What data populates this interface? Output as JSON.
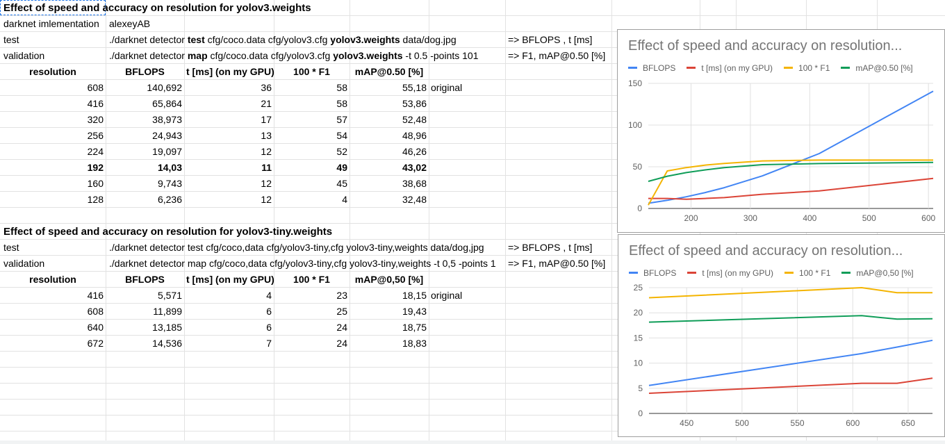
{
  "sheet": {
    "section1": {
      "title": "Effect of speed and accuracy on resolution for yolov3.weights",
      "impl_label": "darknet imlementation",
      "impl_value": "alexeyAB",
      "test_label": "test",
      "test_cmd_1": "./darknet detector ",
      "test_cmd_2": "test",
      "test_cmd_3": " cfg/coco.data cfg/yolov3.cfg ",
      "test_cmd_4": "yolov3.weights",
      "test_cmd_5": " data/dog.jpg",
      "test_result": "=> BFLOPS , t [ms]",
      "val_label": "validation",
      "val_cmd_1": "./darknet detector ",
      "val_cmd_2": "map",
      "val_cmd_3": "  cfg/coco.data cfg/yolov3.cfg ",
      "val_cmd_4": "yolov3.weights",
      "val_cmd_5": " -t 0.5 -points 101",
      "val_result": "=> F1, mAP@0.50 [%]",
      "headers": [
        "resolution",
        "BFLOPS",
        "t [ms] (on my GPU)",
        "100 * F1",
        "mAP@0.50 [%]"
      ],
      "rows": [
        {
          "res": "608",
          "bflops": "140,692",
          "t": "36",
          "f1": "58",
          "map": "55,18",
          "note": "original"
        },
        {
          "res": "416",
          "bflops": "65,864",
          "t": "21",
          "f1": "58",
          "map": "53,86",
          "note": ""
        },
        {
          "res": "320",
          "bflops": "38,973",
          "t": "17",
          "f1": "57",
          "map": "52,48",
          "note": ""
        },
        {
          "res": "256",
          "bflops": "24,943",
          "t": "13",
          "f1": "54",
          "map": "48,96",
          "note": ""
        },
        {
          "res": "224",
          "bflops": "19,097",
          "t": "12",
          "f1": "52",
          "map": "46,26",
          "note": ""
        },
        {
          "res": "192",
          "bflops": "14,03",
          "t": "11",
          "f1": "49",
          "map": "43,02",
          "note": ""
        },
        {
          "res": "160",
          "bflops": "9,743",
          "t": "12",
          "f1": "45",
          "map": "38,68",
          "note": ""
        },
        {
          "res": "128",
          "bflops": "6,236",
          "t": "12",
          "f1": "4",
          "map": "32,48",
          "note": ""
        }
      ]
    },
    "section2": {
      "title": "Effect of speed and accuracy on resolution for yolov3-tiny.weights",
      "test_label": "test",
      "test_cmd": "./darknet detector test  cfg/coco,data cfg/yolov3-tiny,cfg yolov3-tiny,weights data/dog,jpg",
      "test_result": "=> BFLOPS , t [ms]",
      "val_label": "validation",
      "val_cmd": "./darknet detector map  cfg/coco,data cfg/yolov3-tiny,cfg yolov3-tiny,weights -t 0,5 -points 1",
      "val_result": "=> F1, mAP@0.50 [%]",
      "headers": [
        "resolution",
        "BFLOPS",
        "t [ms] (on my GPU)",
        "100 * F1",
        "mAP@0,50 [%]"
      ],
      "rows": [
        {
          "res": "416",
          "bflops": "5,571",
          "t": "4",
          "f1": "23",
          "map": "18,15",
          "note": "original"
        },
        {
          "res": "608",
          "bflops": "11,899",
          "t": "6",
          "f1": "25",
          "map": "19,43",
          "note": ""
        },
        {
          "res": "640",
          "bflops": "13,185",
          "t": "6",
          "f1": "24",
          "map": "18,75",
          "note": ""
        },
        {
          "res": "672",
          "bflops": "14,536",
          "t": "7",
          "f1": "24",
          "map": "18,83",
          "note": ""
        }
      ]
    }
  },
  "chart_data": [
    {
      "type": "line",
      "title": "Effect of speed and accuracy on resolution...",
      "xlabel": "",
      "ylabel": "",
      "xlim": [
        128,
        608
      ],
      "ylim": [
        0,
        150
      ],
      "xticks": [
        200,
        300,
        400,
        500,
        600
      ],
      "yticks": [
        0,
        50,
        100,
        150
      ],
      "grid": true,
      "legend": "top",
      "x": [
        128,
        160,
        192,
        224,
        256,
        320,
        416,
        608
      ],
      "series": [
        {
          "name": "BFLOPS",
          "color": "#4285f4",
          "values": [
            6.236,
            9.743,
            14.03,
            19.097,
            24.943,
            38.973,
            65.864,
            140.692
          ]
        },
        {
          "name": "t [ms] (on my GPU)",
          "color": "#db4437",
          "values": [
            12,
            12,
            11,
            12,
            13,
            17,
            21,
            36
          ]
        },
        {
          "name": "100 * F1",
          "color": "#f4b400",
          "values": [
            4,
            45,
            49,
            52,
            54,
            57,
            58,
            58
          ]
        },
        {
          "name": "mAP@0.50 [%]",
          "color": "#0f9d58",
          "values": [
            32.48,
            38.68,
            43.02,
            46.26,
            48.96,
            52.48,
            53.86,
            55.18
          ]
        }
      ]
    },
    {
      "type": "line",
      "title": "Effect of speed and accuracy on resolution...",
      "xlabel": "",
      "ylabel": "",
      "xlim": [
        416,
        672
      ],
      "ylim": [
        0,
        25
      ],
      "xticks": [
        450,
        500,
        550,
        600,
        650
      ],
      "yticks": [
        0,
        5,
        10,
        15,
        20,
        25
      ],
      "grid": true,
      "legend": "top",
      "x": [
        416,
        608,
        640,
        672
      ],
      "series": [
        {
          "name": "BFLOPS",
          "color": "#4285f4",
          "values": [
            5.571,
            11.899,
            13.185,
            14.536
          ]
        },
        {
          "name": "t [ms] (on my GPU)",
          "color": "#db4437",
          "values": [
            4,
            6,
            6,
            7
          ]
        },
        {
          "name": "100 * F1",
          "color": "#f4b400",
          "values": [
            23,
            25,
            24,
            24
          ]
        },
        {
          "name": "mAP@0,50 [%]",
          "color": "#0f9d58",
          "values": [
            18.15,
            19.43,
            18.75,
            18.83
          ]
        }
      ]
    }
  ]
}
